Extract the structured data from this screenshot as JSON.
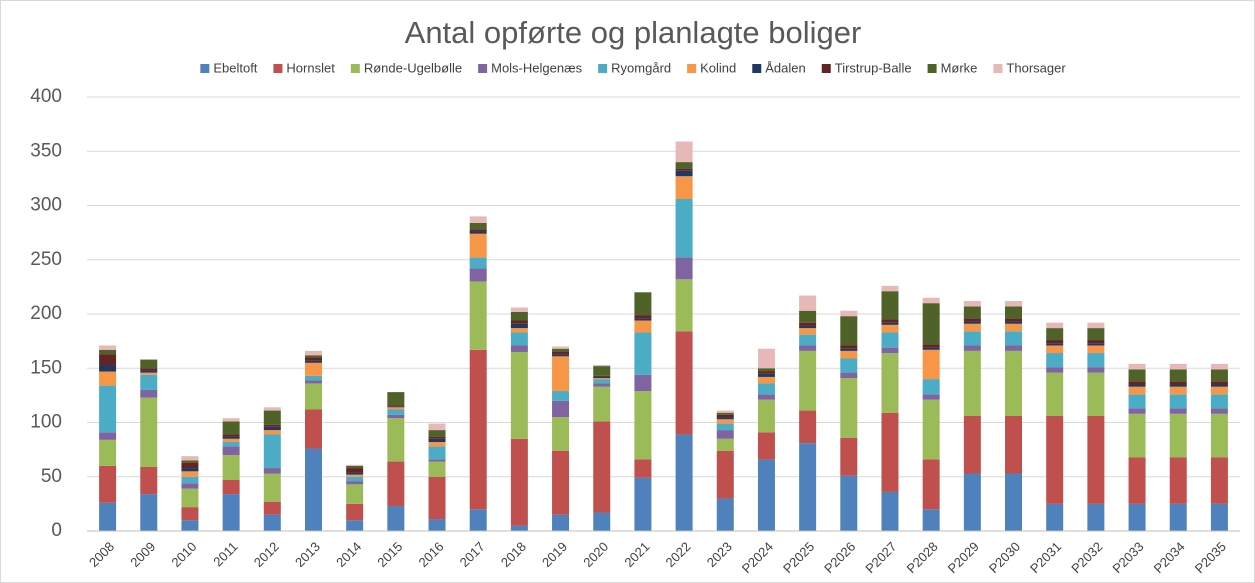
{
  "chart_data": {
    "type": "stacked_bar",
    "title": "Antal opførte og planlagte boliger",
    "categories": [
      "2008",
      "2009",
      "2010",
      "2011",
      "2012",
      "2013",
      "2014",
      "2015",
      "2016",
      "2017",
      "2018",
      "2019",
      "2020",
      "2021",
      "2022",
      "2023",
      "P2024",
      "P2025",
      "P2026",
      "P2027",
      "P2028",
      "P2029",
      "P2030",
      "P2031",
      "P2032",
      "P2033",
      "P2034",
      "P2035"
    ],
    "series": [
      {
        "name": "Ebeltoft",
        "color": "#4f81bd",
        "values": [
          26,
          34,
          10,
          34,
          15,
          76,
          10,
          23,
          11,
          20,
          5,
          15,
          17,
          49,
          89,
          30,
          66,
          81,
          51,
          36,
          20,
          53,
          53,
          25,
          25,
          25,
          25,
          25
        ]
      },
      {
        "name": "Hornslet",
        "color": "#c0504d",
        "values": [
          34,
          25,
          12,
          13,
          12,
          36,
          15,
          41,
          39,
          147,
          80,
          59,
          84,
          17,
          95,
          44,
          25,
          30,
          35,
          73,
          46,
          53,
          53,
          81,
          81,
          43,
          43,
          43
        ]
      },
      {
        "name": "Rønde-Ugelbølle",
        "color": "#9bbb59",
        "values": [
          24,
          64,
          17,
          23,
          26,
          24,
          18,
          40,
          14,
          63,
          80,
          31,
          32,
          63,
          48,
          11,
          30,
          55,
          55,
          55,
          55,
          60,
          60,
          40,
          40,
          40,
          40,
          40
        ]
      },
      {
        "name": "Mols-Helgenæs",
        "color": "#8064a2",
        "values": [
          7,
          7,
          5,
          8,
          5,
          3,
          3,
          3,
          2,
          12,
          6,
          15,
          3,
          15,
          20,
          8,
          5,
          5,
          5,
          5,
          5,
          5,
          5,
          5,
          5,
          5,
          5,
          5
        ]
      },
      {
        "name": "Ryomgård",
        "color": "#4bacc6",
        "values": [
          43,
          14,
          6,
          4,
          31,
          4,
          4,
          5,
          12,
          10,
          12,
          9,
          4,
          39,
          54,
          6,
          10,
          10,
          13,
          14,
          14,
          13,
          13,
          13,
          13,
          13,
          13,
          13
        ]
      },
      {
        "name": "Kolind",
        "color": "#f79646",
        "values": [
          13,
          2,
          5,
          3,
          4,
          12,
          2,
          2,
          4,
          22,
          4,
          32,
          1,
          11,
          21,
          4,
          6,
          6,
          7,
          7,
          27,
          7,
          7,
          7,
          7,
          7,
          7,
          7
        ]
      },
      {
        "name": "Ådalen",
        "color": "#1f3864",
        "values": [
          6,
          2,
          3,
          2,
          3,
          2,
          2,
          1,
          3,
          2,
          4,
          2,
          1,
          2,
          5,
          2,
          3,
          2,
          2,
          2,
          2,
          2,
          2,
          2,
          2,
          2,
          2,
          2
        ]
      },
      {
        "name": "Tirstrup-Balle",
        "color": "#632523",
        "values": [
          10,
          2,
          5,
          2,
          2,
          3,
          4,
          1,
          2,
          2,
          3,
          2,
          1,
          3,
          2,
          2,
          2,
          3,
          3,
          3,
          3,
          3,
          3,
          3,
          3,
          3,
          3,
          3
        ]
      },
      {
        "name": "Mørke",
        "color": "#4f6228",
        "values": [
          4,
          8,
          2,
          12,
          13,
          2,
          2,
          12,
          6,
          6,
          8,
          3,
          9,
          21,
          6,
          2,
          3,
          11,
          27,
          26,
          38,
          11,
          11,
          11,
          11,
          11,
          11,
          11
        ]
      },
      {
        "name": "Thorsager",
        "color": "#e6b9b8",
        "values": [
          4,
          0,
          4,
          3,
          3,
          4,
          1,
          0,
          6,
          6,
          4,
          2,
          1,
          0,
          19,
          2,
          18,
          14,
          5,
          5,
          5,
          5,
          5,
          5,
          5,
          5,
          5,
          5
        ]
      }
    ],
    "ylim": [
      0,
      400
    ],
    "yticks": [
      0,
      50,
      100,
      150,
      200,
      250,
      300,
      350,
      400
    ],
    "grid": true
  }
}
